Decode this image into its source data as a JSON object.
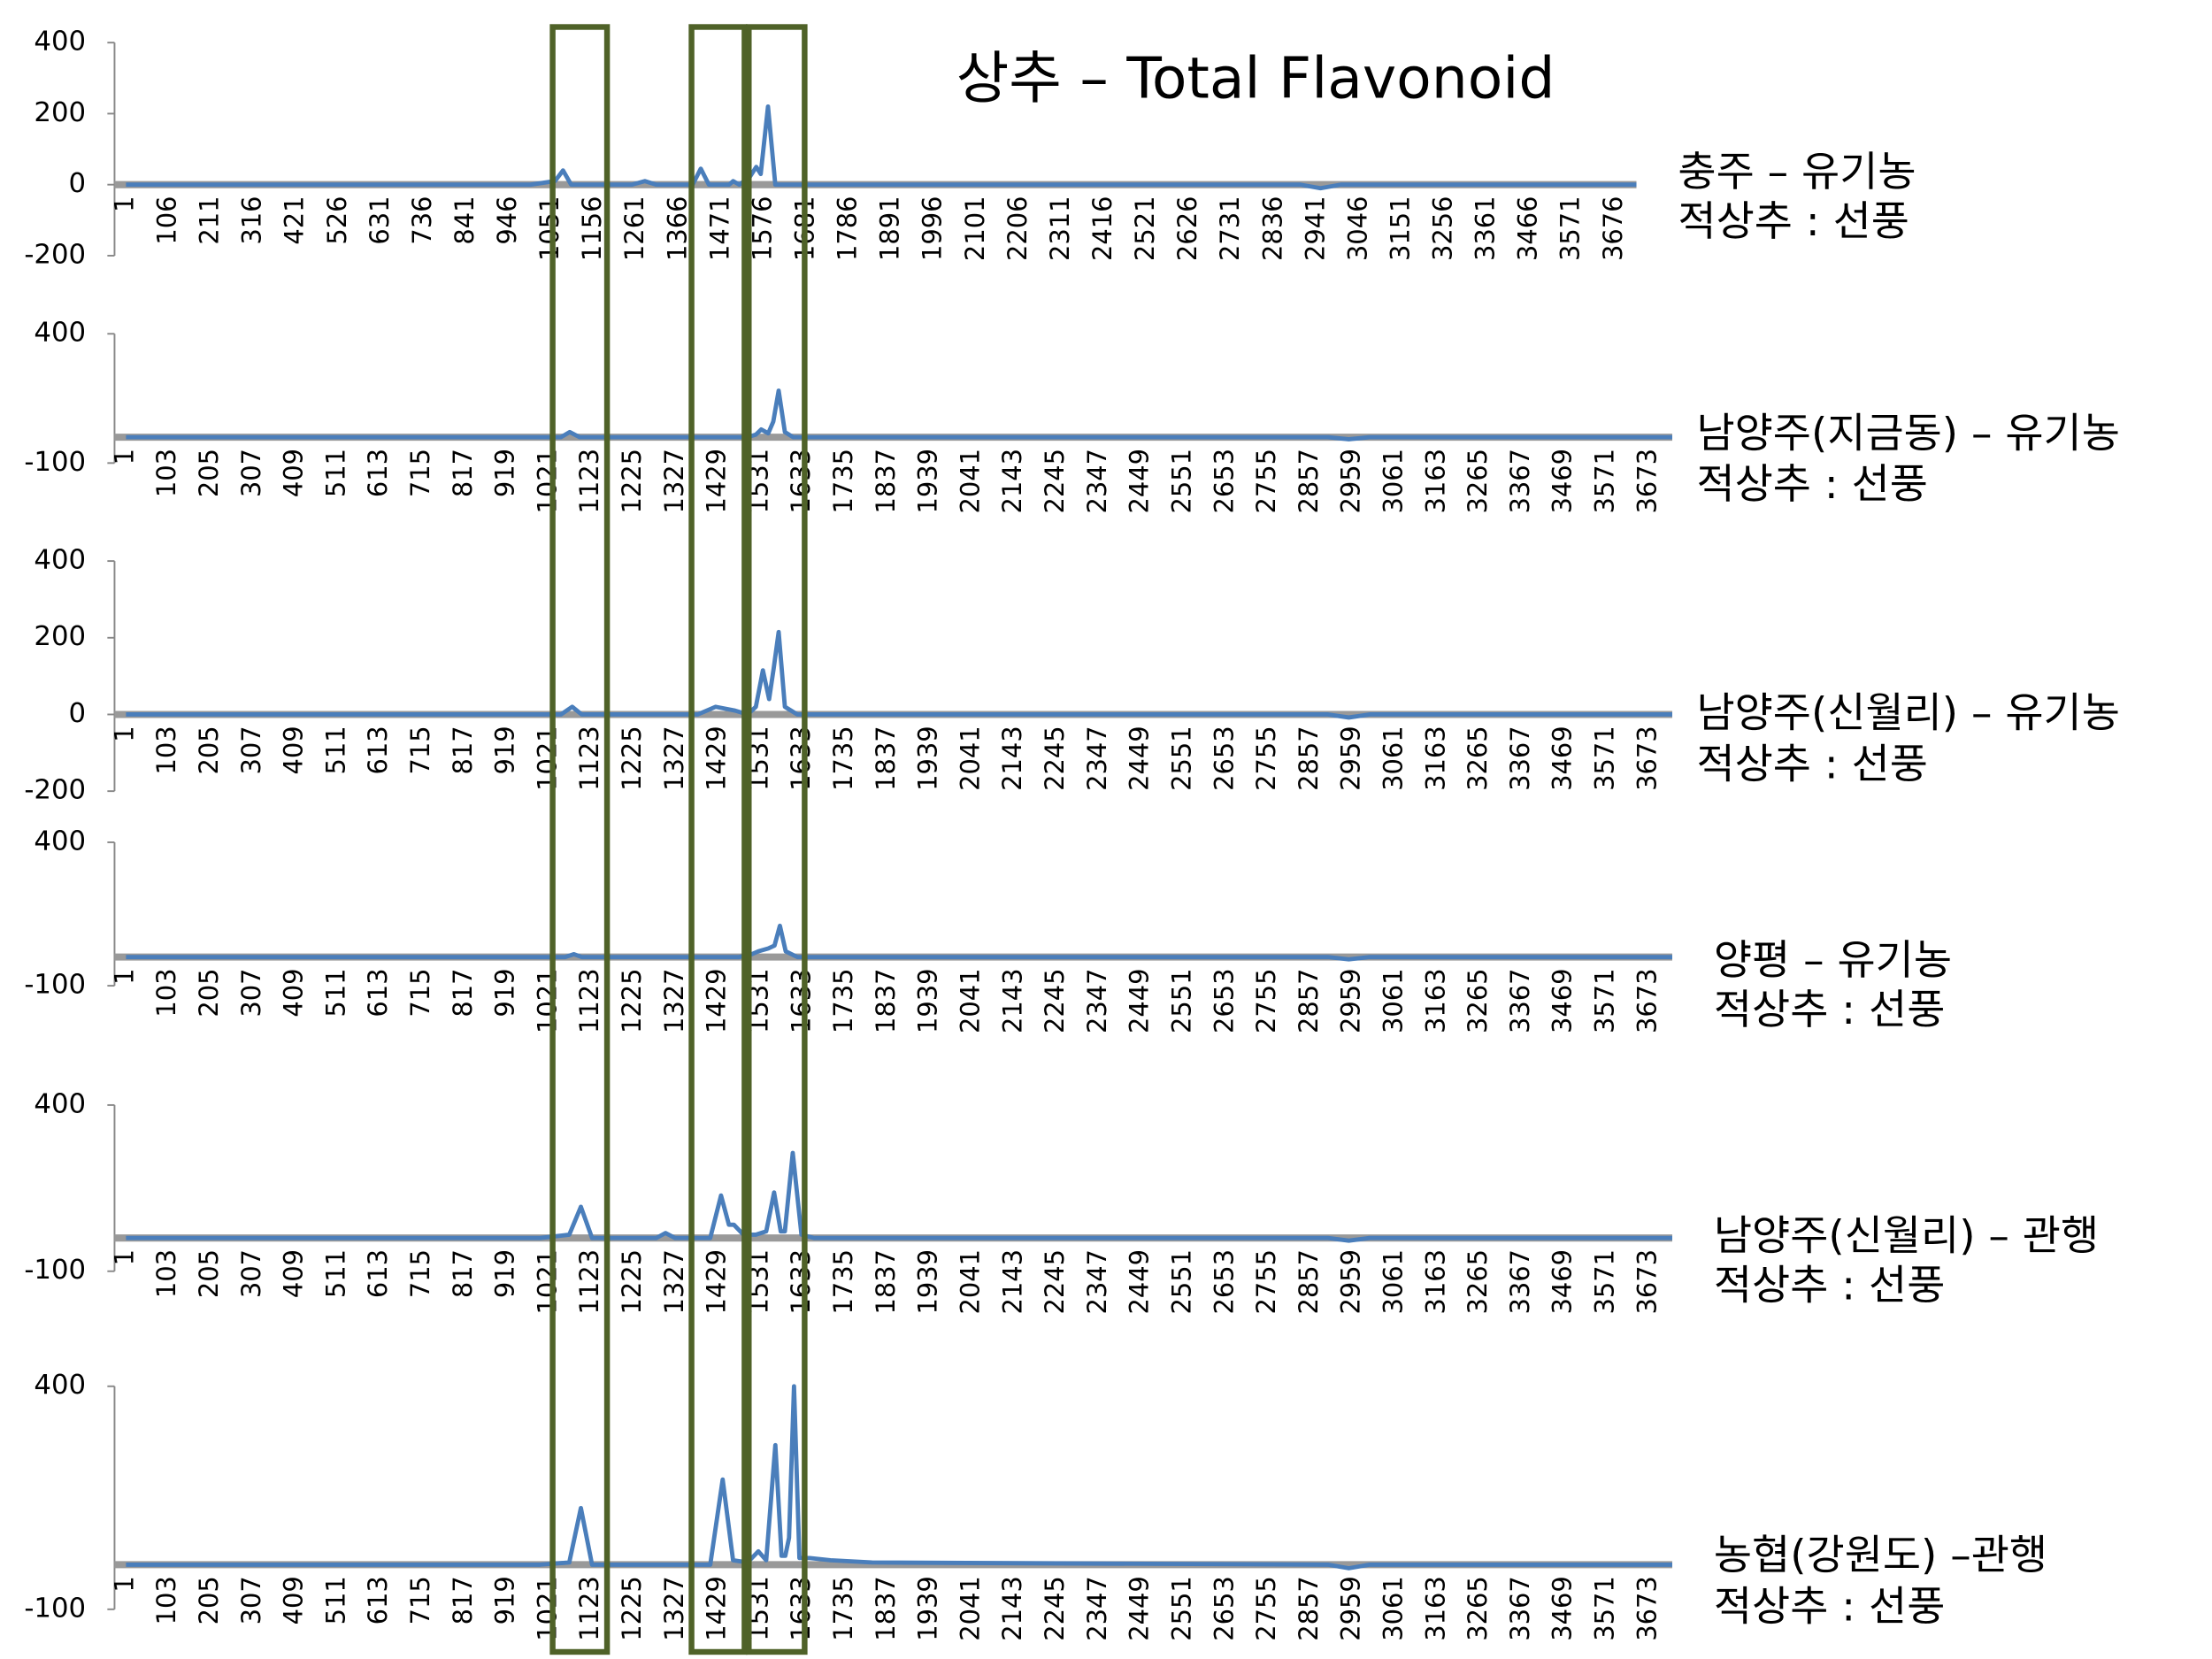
{
  "title": "상추 – Total Flavonoid",
  "chart_data": [
    {
      "type": "line",
      "annotations": [
        "충주 – 유기농",
        "적상추 : 선풍"
      ],
      "x": [
        1,
        1000,
        1060,
        1080,
        1100,
        1250,
        1282,
        1310,
        1400,
        1420,
        1440,
        1490,
        1500,
        1515,
        1540,
        1557,
        1568,
        1586,
        1604,
        1640,
        2900,
        2950,
        3000,
        3730
      ],
      "series": [
        {
          "color": "#4a7ebb",
          "values": [
            0,
            0,
            10,
            40,
            0,
            0,
            10,
            0,
            0,
            45,
            0,
            0,
            10,
            0,
            20,
            50,
            30,
            220,
            0,
            0,
            0,
            -10,
            0,
            0
          ]
        }
      ],
      "xlim": [
        1,
        3730
      ],
      "ylim": [
        -200,
        400
      ],
      "yticks": [
        -200,
        0,
        200,
        400
      ],
      "xticks": [
        1,
        106,
        211,
        316,
        421,
        526,
        631,
        736,
        841,
        946,
        1051,
        1156,
        1261,
        1366,
        1471,
        1576,
        1681,
        1786,
        1891,
        1996,
        2101,
        2206,
        2311,
        2416,
        2521,
        2626,
        2731,
        2836,
        2941,
        3046,
        3151,
        3256,
        3361,
        3466,
        3571,
        3676
      ]
    },
    {
      "type": "line",
      "annotations": [
        "남양주(지금동) – 유기농",
        "적상추 : 선풍"
      ],
      "x": [
        1,
        1000,
        1050,
        1071,
        1095,
        1500,
        1520,
        1533,
        1550,
        1562,
        1575,
        1590,
        1610,
        2900,
        2950,
        3000,
        3730
      ],
      "series": [
        {
          "color": "#4a7ebb",
          "values": [
            0,
            0,
            0,
            20,
            0,
            0,
            10,
            30,
            15,
            60,
            180,
            20,
            0,
            0,
            -8,
            0,
            0
          ]
        }
      ],
      "xlim": [
        1,
        3730
      ],
      "ylim": [
        -100,
        400
      ],
      "yticks": [
        -100,
        400
      ],
      "xticks": [
        1,
        103,
        205,
        307,
        409,
        511,
        613,
        715,
        817,
        919,
        1021,
        1123,
        1225,
        1327,
        1429,
        1531,
        1633,
        1735,
        1837,
        1939,
        2041,
        2143,
        2245,
        2347,
        2449,
        2551,
        2653,
        2755,
        2857,
        2959,
        3061,
        3163,
        3265,
        3367,
        3469,
        3571,
        3673
      ]
    },
    {
      "type": "line",
      "annotations": [
        "남양주(신월리) – 유기농",
        "적상추 : 선풍"
      ],
      "x": [
        1,
        1000,
        1050,
        1077,
        1100,
        1380,
        1423,
        1470,
        1500,
        1520,
        1537,
        1552,
        1563,
        1575,
        1590,
        1620,
        2900,
        2950,
        3000,
        3730
      ],
      "series": [
        {
          "color": "#4a7ebb",
          "values": [
            0,
            0,
            0,
            20,
            0,
            0,
            20,
            10,
            0,
            20,
            115,
            40,
            120,
            215,
            20,
            0,
            0,
            -8,
            0,
            0
          ]
        }
      ],
      "xlim": [
        1,
        3730
      ],
      "ylim": [
        -200,
        400
      ],
      "yticks": [
        -200,
        0,
        200,
        400
      ],
      "xticks": [
        1,
        103,
        205,
        307,
        409,
        511,
        613,
        715,
        817,
        919,
        1021,
        1123,
        1225,
        1327,
        1429,
        1531,
        1633,
        1735,
        1837,
        1939,
        2041,
        2143,
        2245,
        2347,
        2449,
        2551,
        2653,
        2755,
        2857,
        2959,
        3061,
        3163,
        3265,
        3367,
        3469,
        3571,
        3673
      ]
    },
    {
      "type": "line",
      "annotations": [
        "양평 – 유기농",
        "적상추 : 선풍"
      ],
      "x": [
        1,
        1000,
        1060,
        1081,
        1100,
        1480,
        1510,
        1526,
        1550,
        1565,
        1578,
        1592,
        1620,
        2900,
        2950,
        3000,
        3730
      ],
      "series": [
        {
          "color": "#4a7ebb",
          "values": [
            0,
            0,
            0,
            10,
            0,
            0,
            10,
            20,
            30,
            40,
            109,
            20,
            0,
            0,
            -8,
            0,
            0
          ]
        }
      ],
      "xlim": [
        1,
        3730
      ],
      "ylim": [
        -100,
        400
      ],
      "yticks": [
        -100,
        400
      ],
      "xticks": [
        1,
        103,
        205,
        307,
        409,
        511,
        613,
        715,
        817,
        919,
        1021,
        1123,
        1225,
        1327,
        1429,
        1531,
        1633,
        1735,
        1837,
        1939,
        2041,
        2143,
        2245,
        2347,
        2449,
        2551,
        2653,
        2755,
        2857,
        2959,
        3061,
        3163,
        3265,
        3367,
        3469,
        3571,
        3673
      ]
    },
    {
      "type": "line",
      "annotations": [
        "남양주(신월리) – 관행",
        "적상추 : 선풍"
      ],
      "x": [
        1,
        1000,
        1070,
        1098,
        1125,
        1280,
        1302,
        1325,
        1410,
        1436,
        1455,
        1467,
        1490,
        1520,
        1545,
        1564,
        1580,
        1590,
        1609,
        1630,
        1660,
        2900,
        2950,
        3000,
        3730
      ],
      "series": [
        {
          "color": "#4a7ebb",
          "values": [
            0,
            0,
            10,
            94,
            0,
            0,
            15,
            0,
            0,
            128,
            40,
            40,
            10,
            10,
            20,
            137,
            20,
            20,
            256,
            10,
            0,
            0,
            -8,
            0,
            0
          ]
        }
      ],
      "xlim": [
        1,
        3730
      ],
      "ylim": [
        -100,
        400
      ],
      "yticks": [
        -100,
        400
      ],
      "xticks": [
        1,
        103,
        205,
        307,
        409,
        511,
        613,
        715,
        817,
        919,
        1021,
        1123,
        1225,
        1327,
        1429,
        1531,
        1633,
        1735,
        1837,
        1939,
        2041,
        2143,
        2245,
        2347,
        2449,
        2551,
        2653,
        2755,
        2857,
        2959,
        3061,
        3163,
        3265,
        3367,
        3469,
        3571,
        3673
      ]
    },
    {
      "type": "line",
      "annotations": [
        "농협(강원도) –관행",
        "적상추 : 선풍"
      ],
      "x": [
        1,
        1000,
        1070,
        1098,
        1125,
        1410,
        1440,
        1465,
        1500,
        1526,
        1545,
        1567,
        1582,
        1591,
        1600,
        1612,
        1625,
        1650,
        1700,
        1800,
        2900,
        2950,
        3000,
        3730
      ],
      "series": [
        {
          "color": "#4a7ebb",
          "values": [
            0,
            0,
            5,
            127,
            0,
            0,
            191,
            10,
            5,
            30,
            10,
            268,
            20,
            20,
            60,
            400,
            15,
            15,
            10,
            5,
            0,
            -8,
            0,
            0
          ]
        }
      ],
      "xlim": [
        1,
        3730
      ],
      "ylim": [
        -100,
        400
      ],
      "yticks": [
        -100,
        400
      ],
      "xticks": [
        1,
        103,
        205,
        307,
        409,
        511,
        613,
        715,
        817,
        919,
        1021,
        1123,
        1225,
        1327,
        1429,
        1531,
        1633,
        1735,
        1837,
        1939,
        2041,
        2143,
        2245,
        2347,
        2449,
        2551,
        2653,
        2755,
        2857,
        2959,
        3061,
        3163,
        3265,
        3367,
        3469,
        3571,
        3673
      ]
    }
  ]
}
